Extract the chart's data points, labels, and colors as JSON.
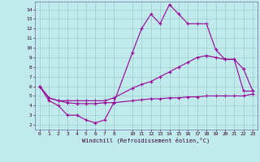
{
  "xlabel": "Windchill (Refroidissement éolien,°C)",
  "bg_color": "#c0eaec",
  "grid_color": "#a0ccd0",
  "line_color": "#990099",
  "spine_color": "#7070a0",
  "x_ticks": [
    0,
    1,
    2,
    3,
    4,
    5,
    6,
    7,
    8,
    10,
    11,
    12,
    13,
    14,
    15,
    16,
    17,
    18,
    19,
    20,
    21,
    22,
    23
  ],
  "y_ticks": [
    2,
    3,
    4,
    5,
    6,
    7,
    8,
    9,
    10,
    11,
    12,
    13,
    14
  ],
  "ylim": [
    1.5,
    14.8
  ],
  "xlim": [
    -0.5,
    23.5
  ],
  "line1_x": [
    0,
    1,
    2,
    3,
    4,
    5,
    6,
    7,
    8,
    10,
    11,
    12,
    13,
    14,
    15,
    16,
    17,
    18,
    19,
    20,
    21,
    22,
    23
  ],
  "line1_y": [
    6.0,
    4.5,
    4.0,
    3.0,
    3.0,
    2.5,
    2.2,
    2.5,
    4.3,
    9.5,
    12.0,
    13.5,
    12.5,
    14.5,
    13.5,
    12.5,
    12.5,
    12.5,
    9.8,
    8.8,
    8.8,
    5.5,
    5.5
  ],
  "line2_x": [
    0,
    1,
    2,
    3,
    4,
    5,
    6,
    7,
    8,
    10,
    11,
    12,
    13,
    14,
    15,
    16,
    17,
    18,
    19,
    20,
    21,
    22,
    23
  ],
  "line2_y": [
    6.0,
    4.8,
    4.5,
    4.5,
    4.5,
    4.5,
    4.5,
    4.5,
    4.8,
    5.8,
    6.2,
    6.5,
    7.0,
    7.5,
    8.0,
    8.5,
    9.0,
    9.2,
    9.0,
    8.8,
    8.8,
    7.8,
    5.5
  ],
  "line3_x": [
    0,
    1,
    2,
    3,
    4,
    5,
    6,
    7,
    8,
    10,
    11,
    12,
    13,
    14,
    15,
    16,
    17,
    18,
    19,
    20,
    21,
    22,
    23
  ],
  "line3_y": [
    6.0,
    4.8,
    4.5,
    4.3,
    4.2,
    4.2,
    4.2,
    4.3,
    4.3,
    4.5,
    4.6,
    4.7,
    4.7,
    4.8,
    4.8,
    4.9,
    4.9,
    5.0,
    5.0,
    5.0,
    5.0,
    5.0,
    5.2
  ]
}
